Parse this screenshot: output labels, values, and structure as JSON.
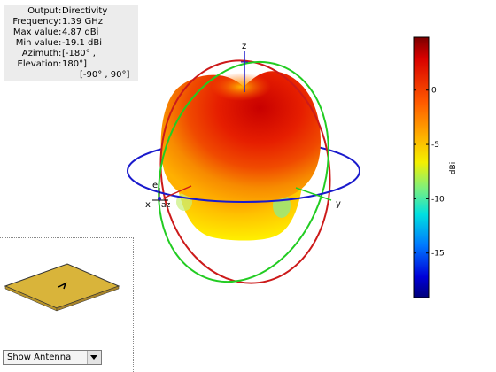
{
  "info": [
    {
      "key": "Output",
      "value": "Directivity"
    },
    {
      "key": "Frequency",
      "value": "1.39 GHz"
    },
    {
      "key": "Max value",
      "value": "4.87 dBi"
    },
    {
      "key": "Min value",
      "value": "-19.1 dBi"
    },
    {
      "key": "Azimuth",
      "value": "[-180° ,"
    },
    {
      "key": "Elevation",
      "value": "180°]"
    },
    {
      "key": "",
      "value": "[-90° , 90°]"
    }
  ],
  "axes": {
    "x": "x",
    "y": "y",
    "z": "z",
    "el": "el",
    "az": "az"
  },
  "colorbar": {
    "unit": "dBi",
    "ticks": [
      {
        "value": 0,
        "label": "0"
      },
      {
        "value": -5,
        "label": "-5"
      },
      {
        "value": -10,
        "label": "-10"
      },
      {
        "value": -15,
        "label": "-15"
      }
    ],
    "min": -19.1,
    "max": 4.87
  },
  "display_select": {
    "value": "Show Antenna"
  },
  "colors": {
    "azimuth_ring": "#1a1acc",
    "elevation_ring_red": "#cc1a1a",
    "elevation_ring_green": "#22cc22",
    "antenna_patch": "#d9b43a"
  }
}
